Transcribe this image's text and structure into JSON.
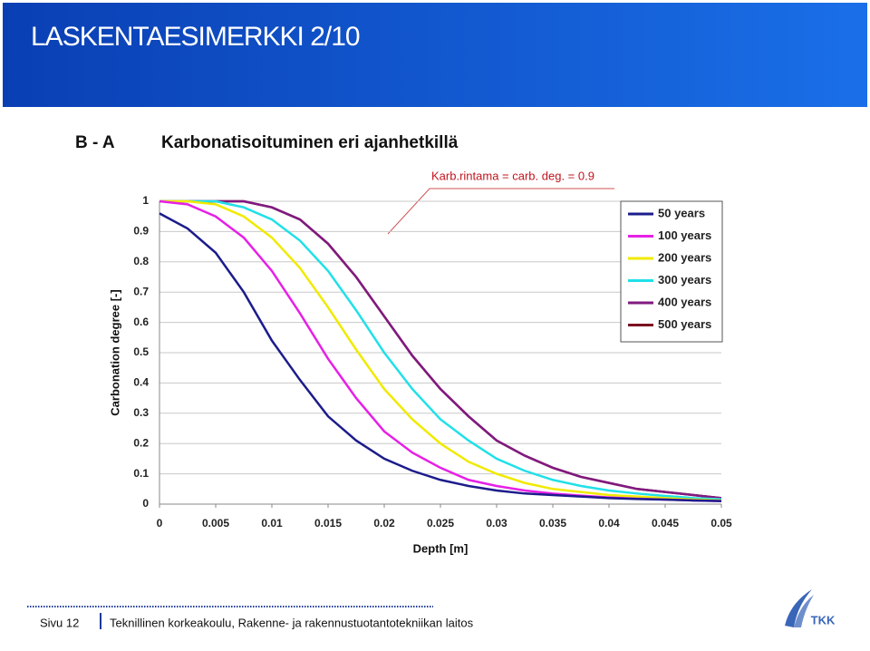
{
  "header": {
    "title": "LASKENTAESIMERKKI 2/10"
  },
  "chart_data": {
    "type": "line",
    "label": "B - A",
    "title": "Karbonatisoituminen eri ajanhetkillä",
    "annotation": "Karb.rintama = carb. deg. = 0.9",
    "x_label": "Depth [m]",
    "y_label": "Carbonation degree [-]",
    "x": [
      0,
      0.0025,
      0.005,
      0.0075,
      0.01,
      0.0125,
      0.015,
      0.0175,
      0.02,
      0.0225,
      0.025,
      0.0275,
      0.03,
      0.0325,
      0.035,
      0.0375,
      0.04,
      0.0425,
      0.045,
      0.0475,
      0.05
    ],
    "series": [
      {
        "name": "50 years",
        "color": "#1c1c8c",
        "values": [
          0.96,
          0.91,
          0.83,
          0.7,
          0.54,
          0.41,
          0.29,
          0.21,
          0.15,
          0.11,
          0.08,
          0.06,
          0.045,
          0.035,
          0.03,
          0.025,
          0.02,
          0.017,
          0.015,
          0.012,
          0.01
        ]
      },
      {
        "name": "100 years",
        "color": "#e620e6",
        "values": [
          1,
          0.99,
          0.95,
          0.88,
          0.77,
          0.63,
          0.48,
          0.35,
          0.24,
          0.17,
          0.12,
          0.08,
          0.06,
          0.045,
          0.035,
          0.028,
          0.022,
          0.018,
          0.015,
          0.012,
          0.01
        ]
      },
      {
        "name": "200 years",
        "color": "#f0ea00",
        "values": [
          1,
          1,
          0.99,
          0.95,
          0.88,
          0.78,
          0.65,
          0.51,
          0.38,
          0.28,
          0.2,
          0.14,
          0.1,
          0.07,
          0.05,
          0.04,
          0.03,
          0.025,
          0.02,
          0.015,
          0.012
        ]
      },
      {
        "name": "300 years",
        "color": "#20e0e8",
        "values": [
          1,
          1,
          1,
          0.98,
          0.94,
          0.87,
          0.77,
          0.64,
          0.5,
          0.38,
          0.28,
          0.21,
          0.15,
          0.11,
          0.08,
          0.06,
          0.045,
          0.035,
          0.027,
          0.02,
          0.016
        ]
      },
      {
        "name": "400 years",
        "color": "#801a80",
        "values": [
          1,
          1,
          1,
          1,
          0.98,
          0.94,
          0.86,
          0.75,
          0.62,
          0.49,
          0.38,
          0.29,
          0.21,
          0.16,
          0.12,
          0.09,
          0.07,
          0.05,
          0.04,
          0.03,
          0.02
        ]
      },
      {
        "name": "500 years",
        "color": "#7a1020",
        "values": [
          1,
          1,
          1,
          1,
          0.98,
          0.94,
          0.86,
          0.75,
          0.62,
          0.49,
          0.38,
          0.29,
          0.21,
          0.16,
          0.12,
          0.09,
          0.07,
          0.05,
          0.04,
          0.03,
          0.02
        ]
      }
    ],
    "xlim": [
      0,
      0.05
    ],
    "xticks": [
      0,
      0.005,
      0.01,
      0.015,
      0.02,
      0.025,
      0.03,
      0.035,
      0.04,
      0.045,
      0.05
    ],
    "ylim": [
      0,
      1
    ],
    "yticks": [
      0,
      0.1,
      0.2,
      0.3,
      0.4,
      0.5,
      0.6,
      0.7,
      0.8,
      0.9,
      1
    ],
    "grid": true,
    "legend": "upper right"
  },
  "footer": {
    "page": "Sivu 12",
    "organization": "Teknillinen korkeakoulu, Rakenne- ja rakennustuotantotekniikan laitos",
    "logo": "TKK"
  }
}
